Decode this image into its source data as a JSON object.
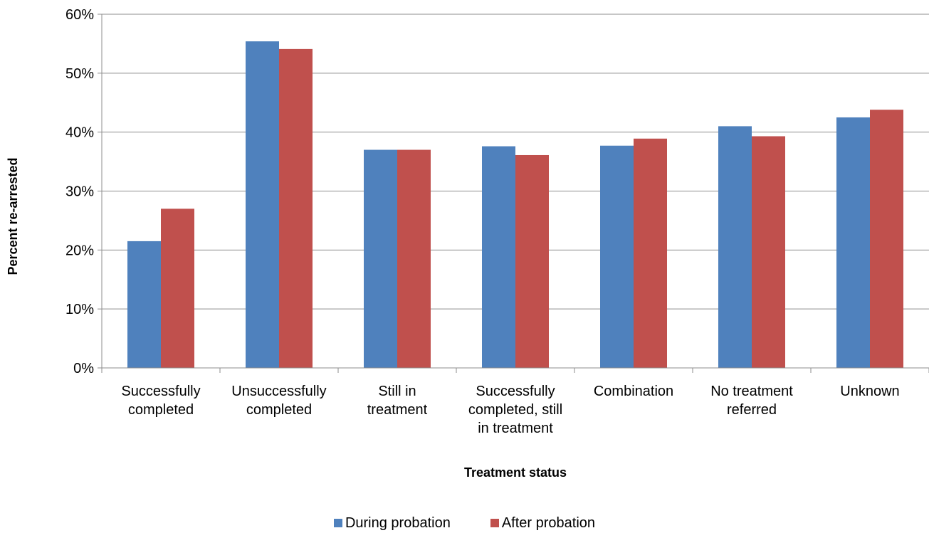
{
  "chart_data": {
    "type": "bar",
    "title": "",
    "xlabel": "Treatment status",
    "ylabel": "Percent re-arrested",
    "ylim": [
      0,
      60
    ],
    "yticks": [
      "0%",
      "10%",
      "20%",
      "30%",
      "40%",
      "50%",
      "60%"
    ],
    "grid": true,
    "legend_position": "bottom",
    "categories": [
      [
        "Successfully",
        "completed"
      ],
      [
        "Unsuccessfully",
        "completed"
      ],
      [
        "Still in",
        "treatment"
      ],
      [
        "Successfully",
        "completed, still",
        "in treatment"
      ],
      [
        "Combination"
      ],
      [
        "No treatment",
        "referred"
      ],
      [
        "Unknown"
      ]
    ],
    "series": [
      {
        "name": "During probation",
        "color": "#4F81BD",
        "values": [
          21.5,
          55.4,
          37.0,
          37.6,
          37.7,
          41.0,
          42.5
        ]
      },
      {
        "name": "After probation",
        "color": "#C0504D",
        "values": [
          27.0,
          54.1,
          37.0,
          36.1,
          38.9,
          39.3,
          43.8
        ]
      }
    ]
  }
}
